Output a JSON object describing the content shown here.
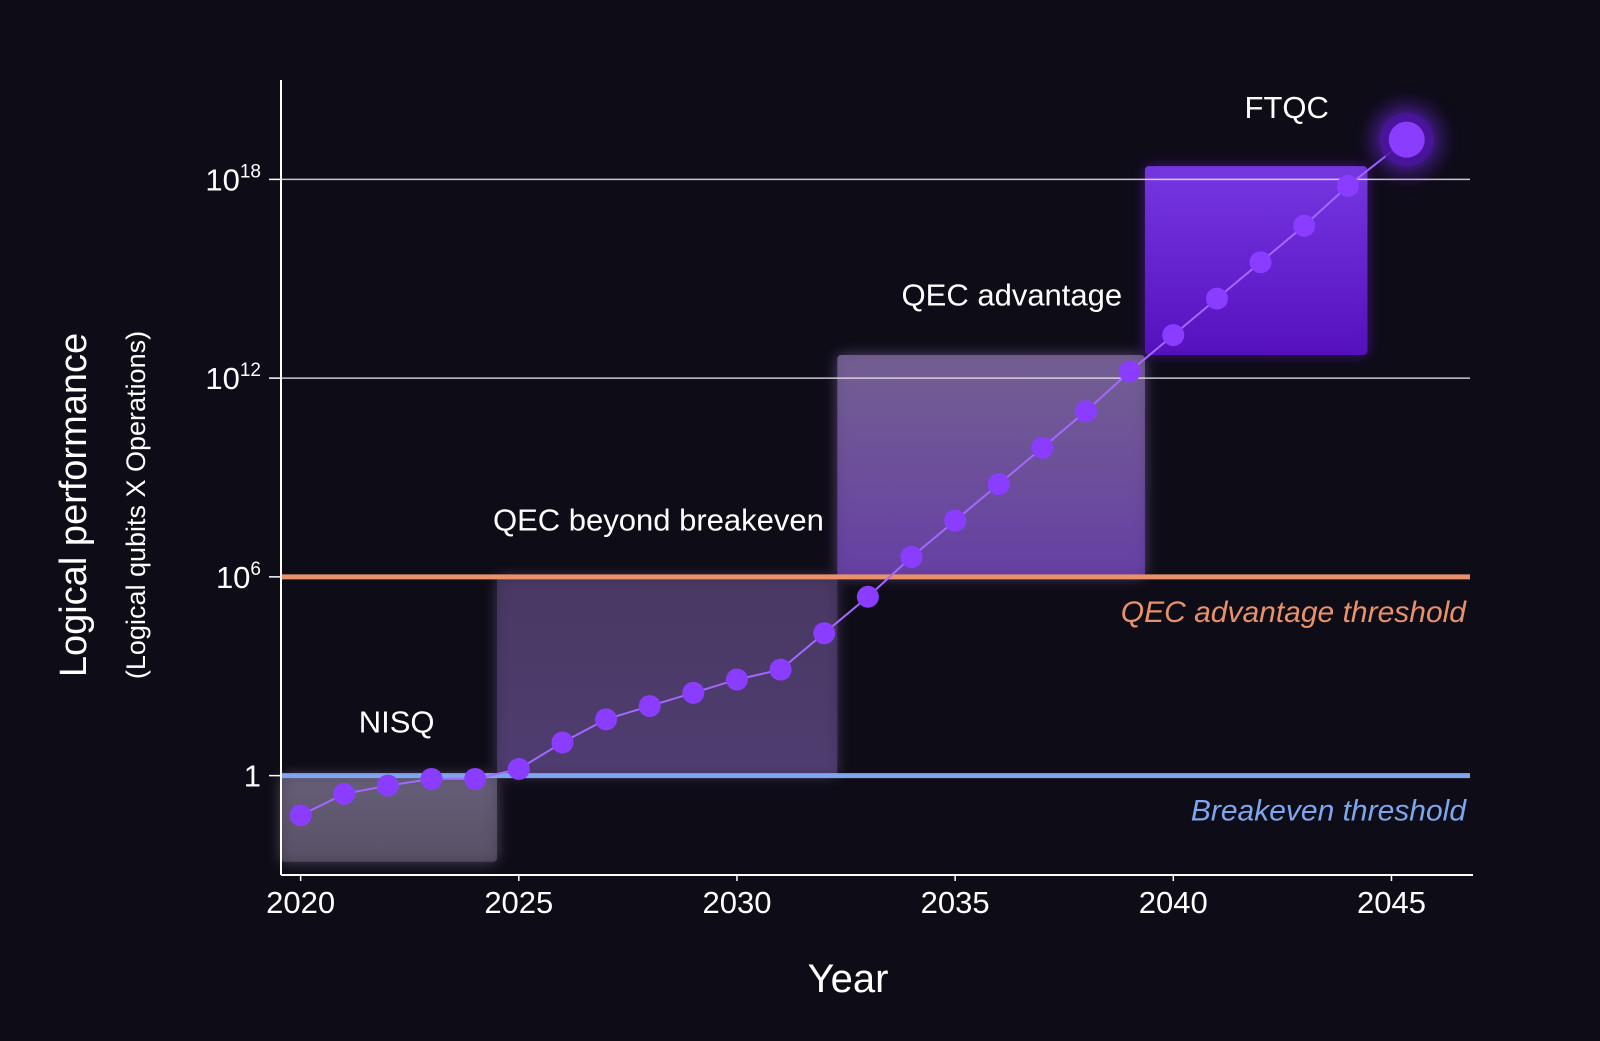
{
  "chart_data": {
    "type": "line",
    "xlabel": "Year",
    "ylabel": "Logical performance",
    "ylabel_sub": "(Logical qubits X Operations)",
    "x_ticks": [
      2020,
      2025,
      2030,
      2035,
      2040,
      2045
    ],
    "xlim": [
      2019.55,
      2046.8
    ],
    "y_scale": "log",
    "ylim_exponent": [
      -3,
      21
    ],
    "y_ticks": [
      {
        "label": "1",
        "base": "1",
        "exp": "",
        "exponent": 0
      },
      {
        "label": "10^6",
        "base": "10",
        "exp": "6",
        "exponent": 6
      },
      {
        "label": "10^12",
        "base": "10",
        "exp": "12",
        "exponent": 12
      },
      {
        "label": "10^18",
        "base": "10",
        "exp": "18",
        "exponent": 18
      }
    ],
    "grid": "horizontal",
    "series": [
      {
        "values": [
          {
            "x": 2020,
            "exp": -1.2
          },
          {
            "x": 2021,
            "exp": -0.55
          },
          {
            "x": 2022,
            "exp": -0.3
          },
          {
            "x": 2023,
            "exp": -0.1
          },
          {
            "x": 2024,
            "exp": -0.1
          },
          {
            "x": 2025,
            "exp": 0.2
          },
          {
            "x": 2026,
            "exp": 1.0
          },
          {
            "x": 2027,
            "exp": 1.7
          },
          {
            "x": 2028,
            "exp": 2.1
          },
          {
            "x": 2029,
            "exp": 2.5
          },
          {
            "x": 2030,
            "exp": 2.9
          },
          {
            "x": 2031,
            "exp": 3.2
          },
          {
            "x": 2032,
            "exp": 4.3
          },
          {
            "x": 2033,
            "exp": 5.4
          },
          {
            "x": 2034,
            "exp": 6.6
          },
          {
            "x": 2035,
            "exp": 7.7
          },
          {
            "x": 2036,
            "exp": 8.8
          },
          {
            "x": 2037,
            "exp": 9.9
          },
          {
            "x": 2038,
            "exp": 11.0
          },
          {
            "x": 2039,
            "exp": 12.2
          },
          {
            "x": 2040,
            "exp": 13.3
          },
          {
            "x": 2041,
            "exp": 14.4
          },
          {
            "x": 2042,
            "exp": 15.5
          },
          {
            "x": 2043,
            "exp": 16.6
          },
          {
            "x": 2044,
            "exp": 17.8
          },
          {
            "x": 2045.35,
            "exp": 19.2
          }
        ]
      }
    ],
    "thresholds": [
      {
        "label": "Breakeven threshold",
        "exponent": 0,
        "color": "#7ea6ee"
      },
      {
        "label": "QEC advantage threshold",
        "exponent": 6,
        "color": "#e9916a"
      }
    ],
    "regions": [
      {
        "label": "NISQ",
        "x0": 2019.55,
        "x1": 2024.5,
        "exp0": -2.6,
        "exp1": 0,
        "label_x": 2022.2,
        "label_exp": 1.3,
        "color": "#8a7ca2",
        "opacity": 0.72
      },
      {
        "label": "QEC beyond breakeven",
        "x0": 2024.5,
        "x1": 2032.3,
        "exp0": 0,
        "exp1": 6,
        "label_x": 2028.2,
        "label_exp": 7.4,
        "color": "#6a5590",
        "opacity": 0.72
      },
      {
        "label": "QEC advantage",
        "x0": 2032.3,
        "x1": 2039.35,
        "exp0": 6,
        "exp1": 12.7,
        "label_x": 2036.3,
        "label_exp": 14.2,
        "color": "#8a72b8",
        "opacity": 0.82
      },
      {
        "label": "FTQC",
        "x0": 2039.35,
        "x1": 2044.45,
        "exp0": 12.7,
        "exp1": 18.4,
        "label_x": 2042.6,
        "label_exp": 19.85,
        "color": "#6a1fd6",
        "opacity": 0.88
      }
    ],
    "accent": "#8b3dff",
    "background": "#0e0c16"
  }
}
